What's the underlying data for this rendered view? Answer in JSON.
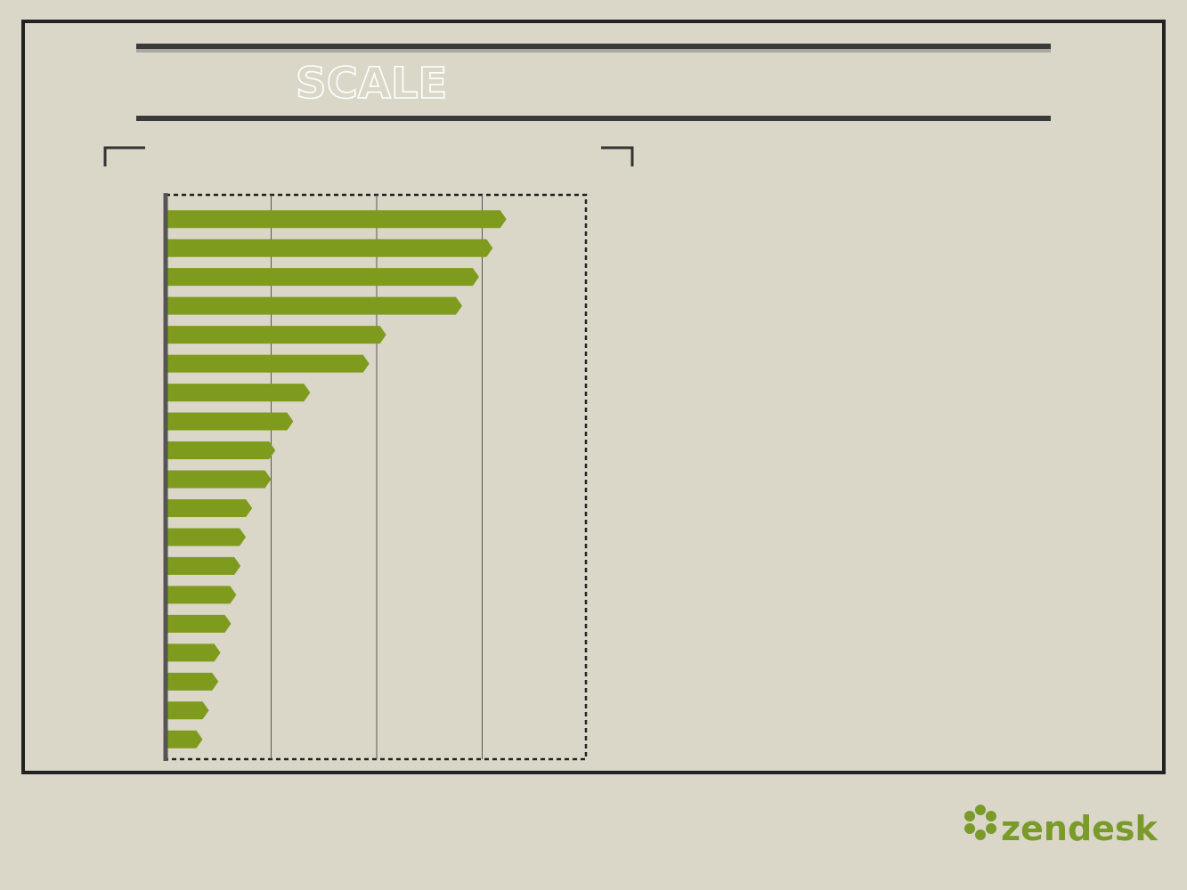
{
  "title": "SCALE",
  "brand": "zendesk",
  "chart_data": {
    "type": "bar",
    "orientation": "horizontal",
    "color": "#7f9b1e",
    "values": [
      3.23,
      3.1,
      2.97,
      2.81,
      2.09,
      1.93,
      1.37,
      1.21,
      1.04,
      1.0,
      0.82,
      0.76,
      0.71,
      0.67,
      0.62,
      0.52,
      0.5,
      0.41,
      0.35
    ],
    "xlim": [
      0,
      4
    ],
    "xticks": [
      1,
      2,
      3
    ],
    "grid": true
  }
}
